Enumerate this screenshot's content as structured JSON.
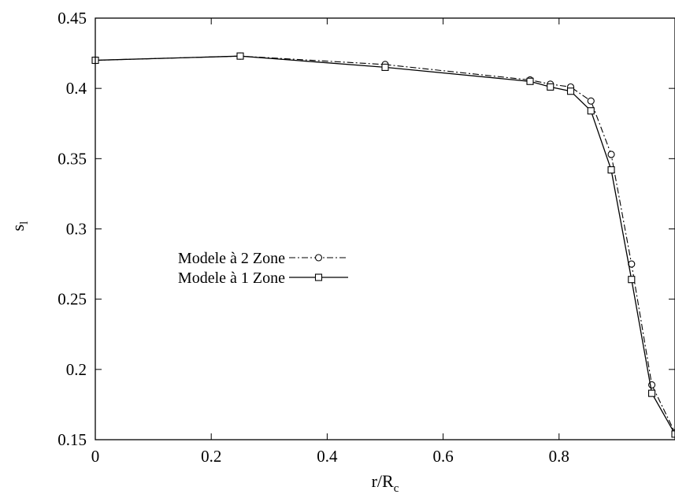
{
  "chart_data": {
    "type": "line",
    "title": "",
    "xlabel": {
      "main": "r/R",
      "sub": "c"
    },
    "ylabel": {
      "main": "s",
      "sub": "l"
    },
    "xlim": [
      0,
      1.0
    ],
    "ylim": [
      0.15,
      0.45
    ],
    "x_ticks": [
      "0",
      "0.2",
      "0.4",
      "0.6",
      "0.8"
    ],
    "y_ticks": [
      "0.15",
      "0.2",
      "0.25",
      "0.3",
      "0.35",
      "0.4",
      "0.45"
    ],
    "grid": false,
    "legend_position": "center-left",
    "series": [
      {
        "name": "Modele à 2 Zone",
        "marker": "circle",
        "line_style": "dash-dot",
        "x": [
          0,
          0.25,
          0.5,
          0.75,
          0.785,
          0.82,
          0.855,
          0.89,
          0.925,
          0.96,
          1.0
        ],
        "y": [
          0.42,
          0.423,
          0.417,
          0.406,
          0.403,
          0.401,
          0.391,
          0.353,
          0.275,
          0.189,
          0.155
        ]
      },
      {
        "name": "Modele à 1 Zone",
        "marker": "square",
        "line_style": "solid",
        "x": [
          0,
          0.25,
          0.5,
          0.75,
          0.785,
          0.82,
          0.855,
          0.89,
          0.925,
          0.96,
          1.0
        ],
        "y": [
          0.42,
          0.423,
          0.415,
          0.405,
          0.401,
          0.398,
          0.384,
          0.342,
          0.264,
          0.183,
          0.154
        ]
      }
    ]
  }
}
